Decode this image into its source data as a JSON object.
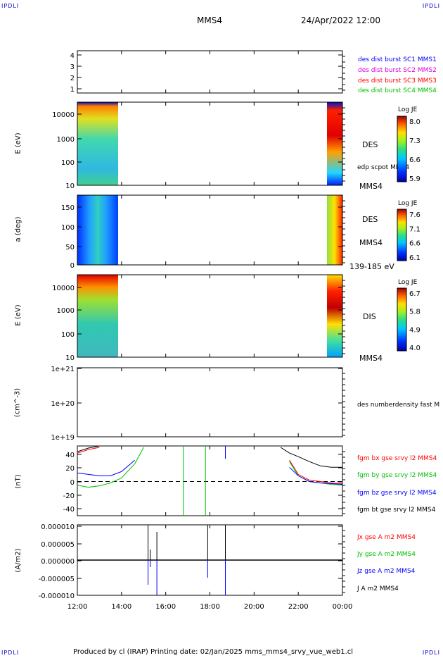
{
  "corners": {
    "tl": "IPDLI",
    "tr": "IPDLI",
    "bl": "IPDLI",
    "br": "IPDLI"
  },
  "header": {
    "title": "MMS4",
    "date": "24/Apr/2022 12:00"
  },
  "footer": "Produced by cl (IRAP)   Printing date: 02/Jan/2025   mms_mms4_srvy_vue_web1.cl",
  "colors": {
    "sc1": "#0000ff",
    "sc2": "#e000e0",
    "sc3": "#ff0000",
    "sc4": "#00c000",
    "bx": "#ff0000",
    "by": "#00c000",
    "bz": "#0000ff",
    "bt": "#000000"
  },
  "chart_data": [
    {
      "type": "scatter",
      "id": "burst",
      "yticks": [
        "4",
        "3",
        "2",
        "1"
      ],
      "legend": [
        "des dist burst SC1 MMS1",
        "des dist burst SC2 MMS2",
        "des dist burst SC3 MMS3",
        "des dist burst SC4 MMS4"
      ]
    },
    {
      "type": "heatmap",
      "id": "des_energy",
      "ylabel": "E (eV)",
      "yticks": [
        "10000",
        "1000",
        "100",
        "10"
      ],
      "right_label": "DES",
      "extra_label": "edp scpot MMS4",
      "bottom_label": "MMS4",
      "colorbar": {
        "title": "Log JE",
        "ticks": [
          "8.0",
          "7.3",
          "6.6",
          "5.9"
        ]
      }
    },
    {
      "type": "heatmap",
      "id": "des_pitch",
      "ylabel": "a (deg)",
      "yticks": [
        "150",
        "100",
        "50",
        "0"
      ],
      "right_label": "DES",
      "extra_label": "MMS4",
      "bottom_label": "139-185 eV",
      "colorbar": {
        "title": "Log JE",
        "ticks": [
          "7.6",
          "7.1",
          "6.6",
          "6.1"
        ]
      }
    },
    {
      "type": "heatmap",
      "id": "dis_energy",
      "ylabel": "E (eV)",
      "yticks": [
        "10000",
        "1000",
        "100",
        "10"
      ],
      "right_label": "DIS",
      "bottom_label": "MMS4",
      "colorbar": {
        "title": "Log JE",
        "ticks": [
          "6.7",
          "5.8",
          "4.9",
          "4.0"
        ]
      }
    },
    {
      "type": "line",
      "id": "density",
      "ylabel": "(cm^-3)",
      "yticks": [
        "1e+21",
        "1e+20",
        "1e+19"
      ],
      "legend": [
        "des numberdensity fast M"
      ],
      "series": []
    },
    {
      "type": "line",
      "id": "bfield",
      "ylabel": "(nT)",
      "yticks": [
        "40",
        "20",
        "0",
        "-20",
        "-40"
      ],
      "ylim": [
        -48,
        50
      ],
      "legend": [
        "fgm bx gse srvy l2 MMS4",
        "fgm by gse srvy l2 MMS4",
        "fgm bz gse srvy l2 MMS4",
        "fgm bt gse srvy l2 MMS4"
      ],
      "x_hours": [
        0,
        0.5,
        1,
        1.5,
        2,
        2.6,
        3,
        3.5,
        9.2,
        9.6,
        10,
        10.5,
        11,
        11.5,
        12
      ],
      "series": [
        {
          "name": "fgm bx gse srvy l2 MMS4",
          "values": [
            40,
            45,
            48,
            null,
            null,
            null,
            null,
            null,
            null,
            30,
            10,
            2,
            0,
            -2,
            -3
          ]
        },
        {
          "name": "fgm by gse srvy l2 MMS4",
          "values": [
            -5,
            -8,
            -6,
            -2,
            5,
            25,
            48,
            null,
            null,
            28,
            8,
            0,
            -2,
            -4,
            -5
          ]
        },
        {
          "name": "fgm bz gse srvy l2 MMS4",
          "values": [
            12,
            10,
            8,
            8,
            14,
            30,
            null,
            null,
            null,
            20,
            8,
            0,
            -2,
            -3,
            -4
          ]
        },
        {
          "name": "fgm bt gse srvy l2 MMS4",
          "values": [
            42,
            47,
            50,
            null,
            null,
            null,
            null,
            null,
            48,
            40,
            35,
            28,
            22,
            20,
            20
          ]
        }
      ]
    },
    {
      "type": "line",
      "id": "current",
      "ylabel": "(A/m2)",
      "yticks": [
        "0.000010",
        "0.000005",
        "0.000000",
        "-0.000005",
        "-0.000010"
      ],
      "ylim": [
        -1e-05,
        1e-05
      ],
      "legend": [
        "Jx gse A m2 MMS4",
        "Jy gse A m2 MMS4",
        "Jz gse A m2 MMS4",
        "J A m2 MMS4"
      ],
      "xticks": [
        "12:00",
        "14:00",
        "16:00",
        "18:00",
        "20:00",
        "22:00",
        "00:00"
      ]
    }
  ]
}
